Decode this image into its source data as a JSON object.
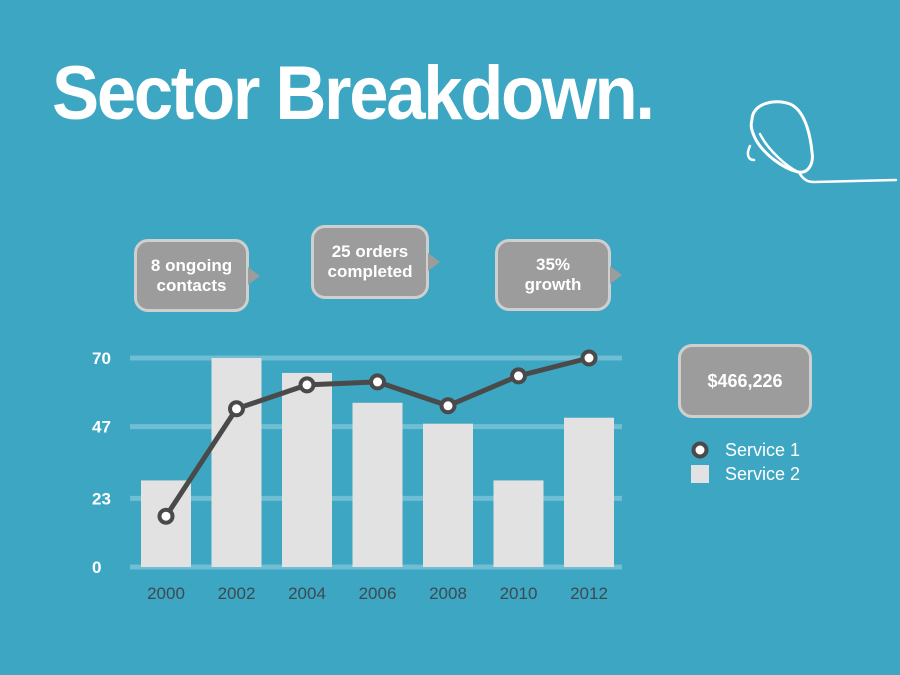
{
  "title": "Sector Breakdown.",
  "callouts": {
    "contacts": {
      "line1": "8 ongoing",
      "line2": "contacts"
    },
    "orders": {
      "line1": "25 orders",
      "line2": "completed"
    },
    "growth": {
      "line1": "35%",
      "line2": "growth"
    },
    "total": {
      "value": "$466,226"
    }
  },
  "colors": {
    "background": "#3da6c2",
    "bar": "#e2e2e2",
    "line": "#4a4a4a",
    "bubble": "#9c9c9c",
    "bubble_border": "#cfcfcf",
    "gridline": "#6fbed3"
  },
  "icons": {
    "decoration": "hand-drawn-doodle-icon",
    "service1": "line-marker-icon",
    "service2": "bar-swatch-icon"
  },
  "chart_data": {
    "type": "bar",
    "title": "",
    "xlabel": "",
    "ylabel": "",
    "categories": [
      "2000",
      "2002",
      "2004",
      "2006",
      "2008",
      "2010",
      "2012"
    ],
    "ylim": [
      0,
      70
    ],
    "yticks": [
      0,
      23,
      47,
      70
    ],
    "grid": true,
    "legend_position": "right",
    "series": [
      {
        "name": "Service 1",
        "type": "line",
        "values": [
          17,
          53,
          61,
          62,
          54,
          64,
          70
        ]
      },
      {
        "name": "Service 2",
        "type": "bar",
        "values": [
          29,
          70,
          65,
          55,
          48,
          29,
          50
        ]
      }
    ]
  }
}
